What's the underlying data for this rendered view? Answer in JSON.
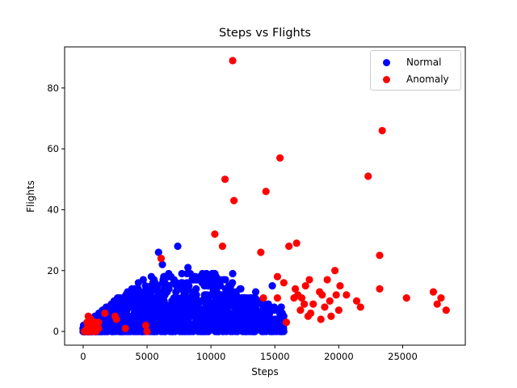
{
  "chart_data": {
    "type": "scatter",
    "title": "Steps vs Flights",
    "xlabel": "Steps",
    "ylabel": "Flights",
    "xlim": [
      -1450,
      29900
    ],
    "ylim": [
      -4.5,
      93.5
    ],
    "xticks": [
      0,
      5000,
      10000,
      15000,
      20000,
      25000
    ],
    "yticks": [
      0,
      20,
      40,
      60,
      80
    ],
    "grid": false,
    "legend_position": "upper right",
    "legend": [
      {
        "label": "Normal",
        "color": "#0000ff"
      },
      {
        "label": "Anomaly",
        "color": "#ff0000"
      }
    ],
    "series": [
      {
        "name": "Normal",
        "color": "#0000ff",
        "description": "dense cluster of ~thousands of points, steps 0-15700, flights 0-28, upper envelope rising with steps then tapering",
        "notable_points": [
          [
            5900,
            26
          ],
          [
            7400,
            28
          ],
          [
            6200,
            22
          ],
          [
            8200,
            21
          ],
          [
            11700,
            19
          ],
          [
            13500,
            13
          ],
          [
            14800,
            15
          ],
          [
            15600,
            4
          ],
          [
            15500,
            8
          ],
          [
            13300,
            0
          ]
        ],
        "generator": {
          "count": 1400,
          "seed": 7,
          "x_max": 15700,
          "y_max": 28
        }
      },
      {
        "name": "Anomaly",
        "color": "#ff0000",
        "points": [
          [
            11700,
            89
          ],
          [
            23400,
            66
          ],
          [
            15400,
            57
          ],
          [
            22300,
            51
          ],
          [
            11100,
            50
          ],
          [
            14300,
            46
          ],
          [
            11800,
            43
          ],
          [
            10300,
            32
          ],
          [
            10900,
            28
          ],
          [
            16100,
            28
          ],
          [
            16700,
            29
          ],
          [
            13900,
            26
          ],
          [
            6100,
            24
          ],
          [
            23200,
            25
          ],
          [
            19700,
            20
          ],
          [
            15200,
            18
          ],
          [
            15700,
            16
          ],
          [
            17700,
            17
          ],
          [
            16600,
            14
          ],
          [
            16800,
            12
          ],
          [
            17400,
            15
          ],
          [
            18500,
            13
          ],
          [
            19100,
            17
          ],
          [
            20100,
            15
          ],
          [
            20600,
            12
          ],
          [
            21400,
            10
          ],
          [
            21700,
            8
          ],
          [
            23200,
            14
          ],
          [
            27400,
            13
          ],
          [
            28000,
            11
          ],
          [
            27700,
            9
          ],
          [
            28400,
            7
          ],
          [
            25300,
            11
          ],
          [
            17100,
            11
          ],
          [
            17300,
            9
          ],
          [
            17600,
            5
          ],
          [
            18000,
            9
          ],
          [
            18700,
            12
          ],
          [
            18900,
            8
          ],
          [
            19300,
            10
          ],
          [
            18600,
            4
          ],
          [
            19400,
            5
          ],
          [
            20000,
            7
          ],
          [
            16500,
            11
          ],
          [
            14100,
            11
          ],
          [
            15200,
            11
          ],
          [
            17800,
            6
          ],
          [
            15900,
            3
          ],
          [
            19800,
            12
          ],
          [
            17000,
            7
          ],
          [
            1700,
            6
          ],
          [
            2500,
            5
          ],
          [
            2600,
            4
          ],
          [
            3300,
            1
          ],
          [
            4900,
            2
          ],
          [
            5000,
            0
          ],
          [
            400,
            5
          ],
          [
            600,
            4
          ],
          [
            700,
            3
          ],
          [
            900,
            3
          ],
          [
            1100,
            2
          ],
          [
            300,
            1
          ],
          [
            500,
            2
          ],
          [
            800,
            1
          ],
          [
            1000,
            0
          ],
          [
            1200,
            1
          ],
          [
            200,
            0
          ],
          [
            600,
            0
          ],
          [
            900,
            0
          ],
          [
            1200,
            3
          ],
          [
            1000,
            1
          ],
          [
            400,
            0
          ],
          [
            100,
            0
          ],
          [
            300,
            3
          ],
          [
            700,
            1
          ]
        ]
      }
    ]
  }
}
